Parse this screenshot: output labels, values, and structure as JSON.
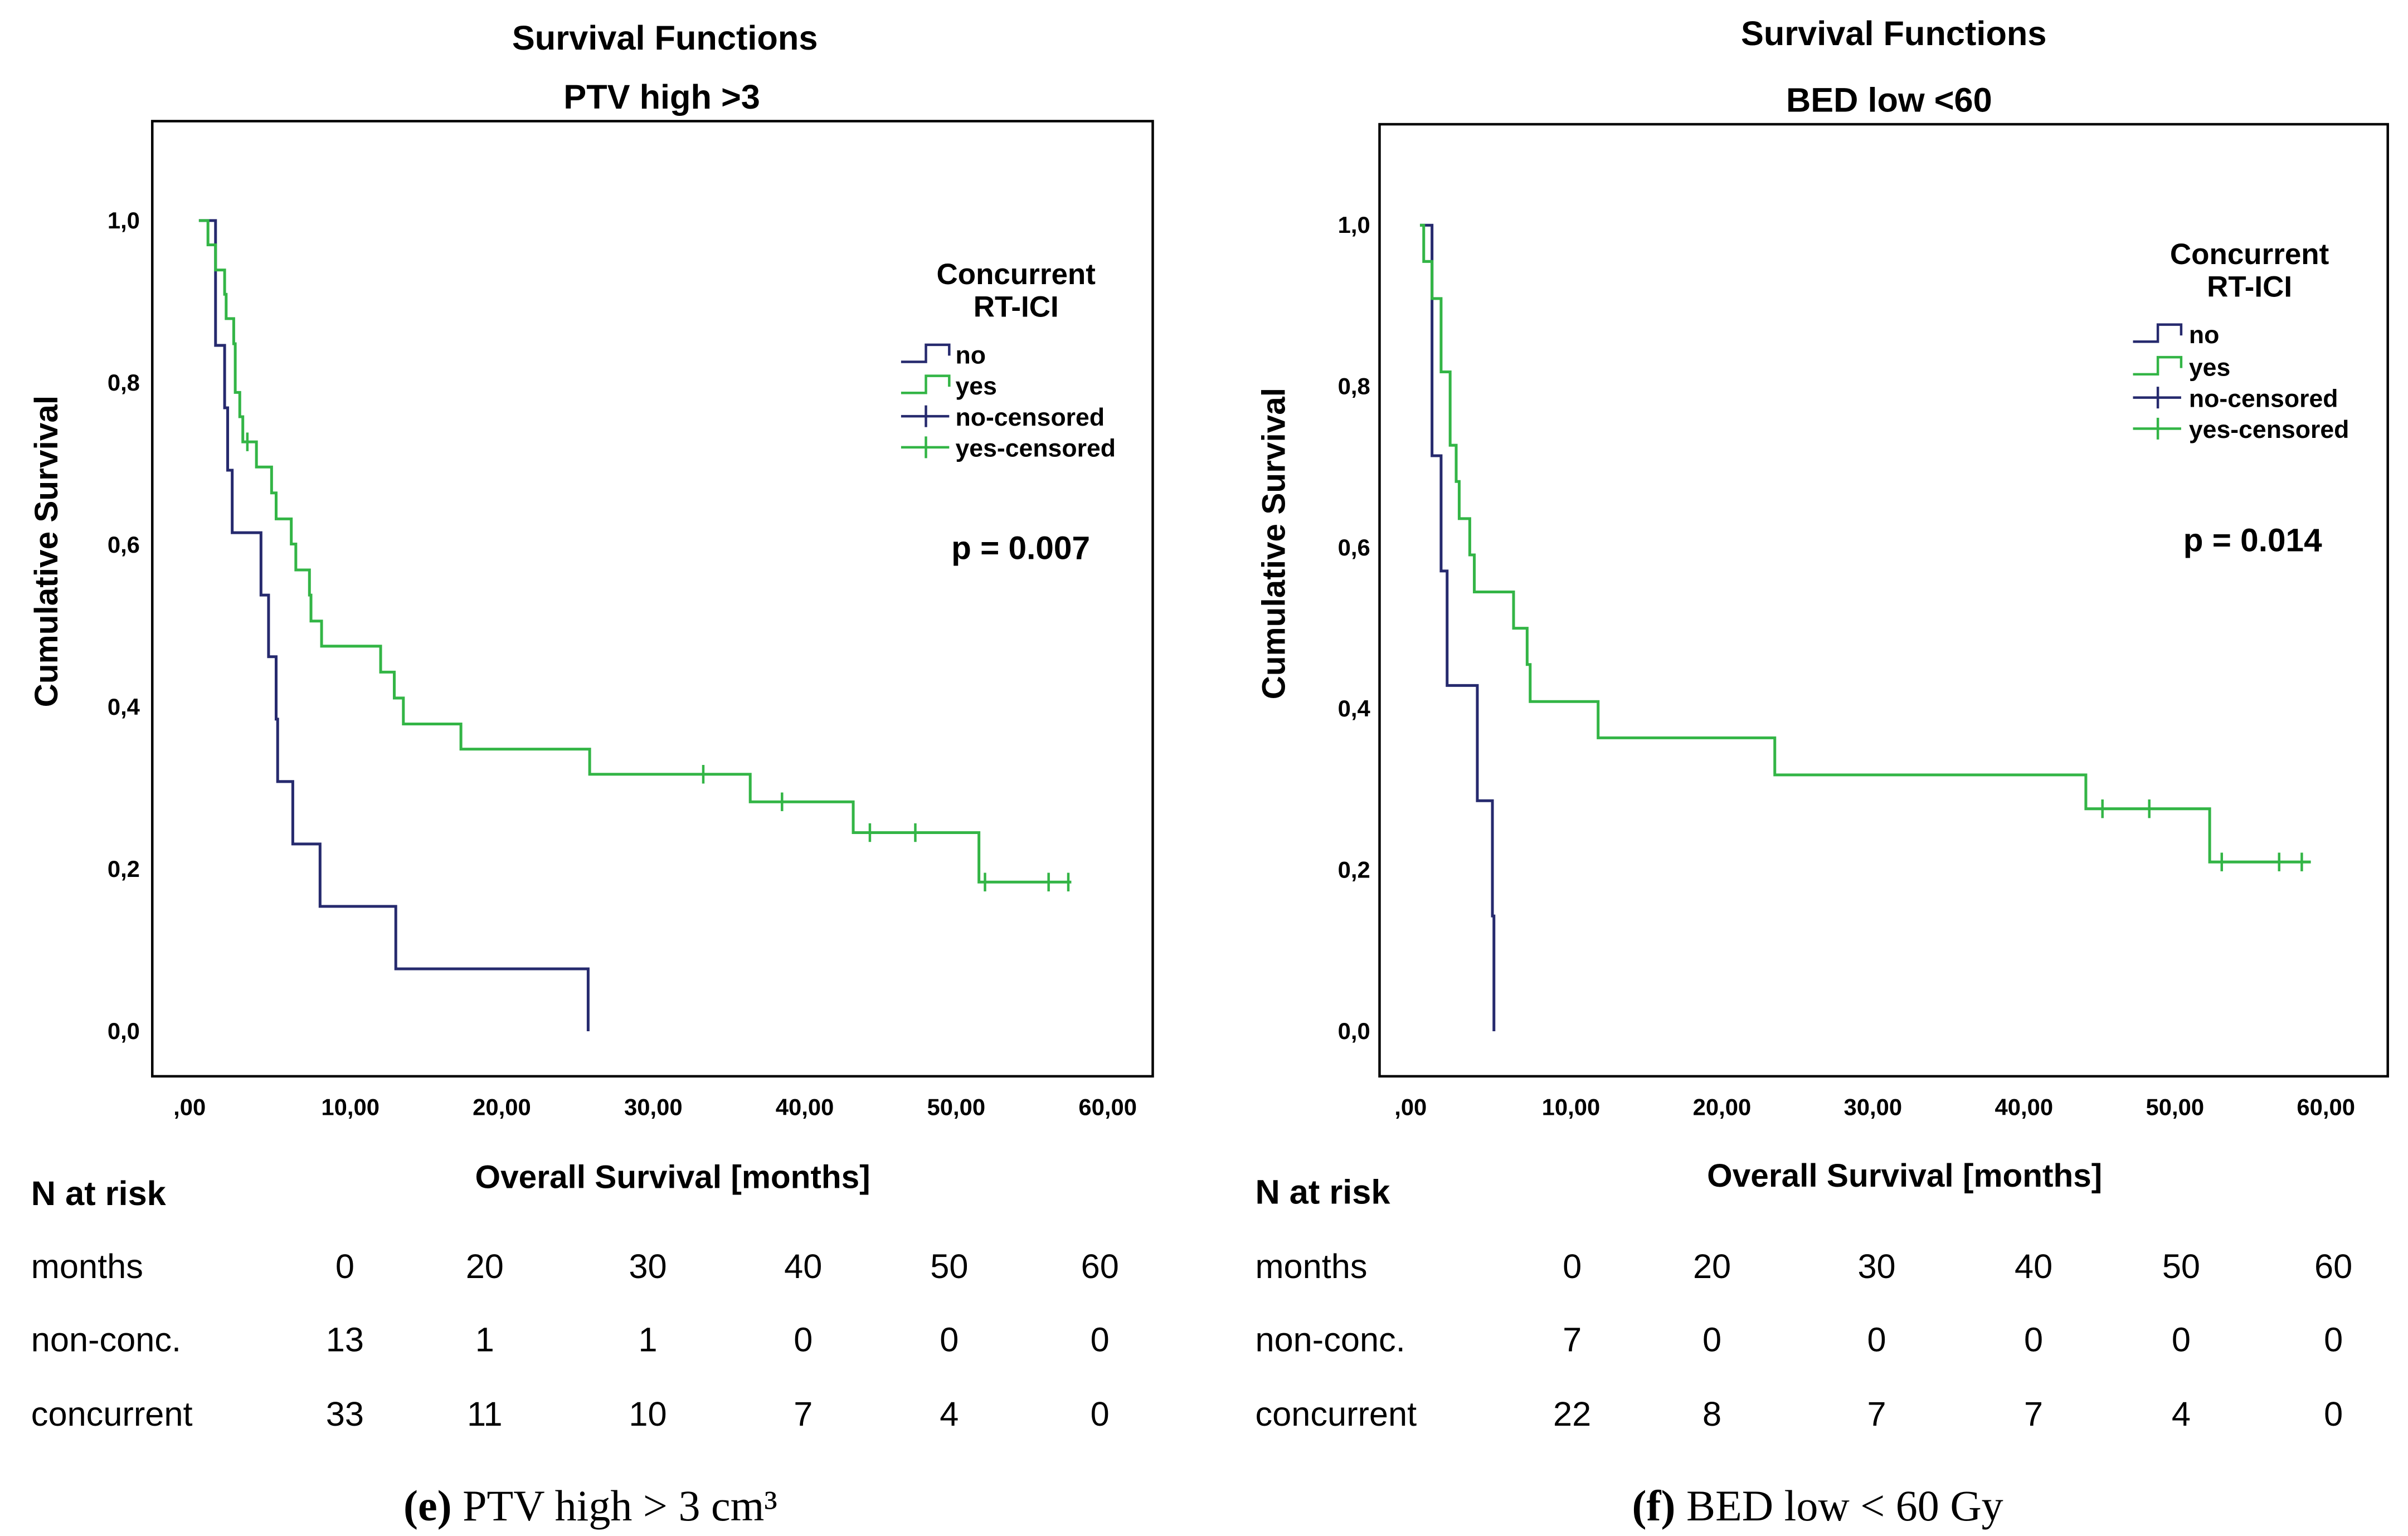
{
  "colors": {
    "no": "#262a6e",
    "yes": "#33b546"
  },
  "chart_data": [
    {
      "type": "line",
      "subtype": "kaplan-meier",
      "title": "Survival Functions",
      "subtitle": "PTV high >3",
      "xlabel": "Overall Survival [months]",
      "ylabel": "Cumulative Survival",
      "xlim": [
        0,
        60
      ],
      "ylim": [
        0,
        1
      ],
      "xticks": [
        ",00",
        "10,00",
        "20,00",
        "30,00",
        "40,00",
        "50,00",
        "60,00"
      ],
      "yticks": [
        "0,0",
        "0,2",
        "0,4",
        "0,6",
        "0,8",
        "1,0"
      ],
      "legend": {
        "title_line1": "Concurrent",
        "title_line2": "RT-ICI",
        "items": [
          "no",
          "yes",
          "no-censored",
          "yes-censored"
        ],
        "placement": "top-right"
      },
      "p_value": "p = 0.007",
      "series": [
        {
          "name": "no",
          "steps": [
            [
              0,
              1
            ],
            [
              1.1,
              0.846
            ],
            [
              1.7,
              0.769
            ],
            [
              1.9,
              0.692
            ],
            [
              2.2,
              0.615
            ],
            [
              4.1,
              0.538
            ],
            [
              4.6,
              0.462
            ],
            [
              5.1,
              0.385
            ],
            [
              5.2,
              0.308
            ],
            [
              6.2,
              0.231
            ],
            [
              8.0,
              0.154
            ],
            [
              13.0,
              0.077
            ],
            [
              25.7,
              0
            ]
          ],
          "end": 25.7,
          "censored": []
        },
        {
          "name": "yes",
          "steps": [
            [
              0,
              1
            ],
            [
              0.6,
              0.97
            ],
            [
              1.1,
              0.939
            ],
            [
              1.7,
              0.909
            ],
            [
              1.8,
              0.879
            ],
            [
              2.3,
              0.848
            ],
            [
              2.4,
              0.788
            ],
            [
              2.7,
              0.758
            ],
            [
              2.9,
              0.727
            ],
            [
              3.8,
              0.696
            ],
            [
              4.8,
              0.664
            ],
            [
              5.1,
              0.632
            ],
            [
              6.1,
              0.601
            ],
            [
              6.4,
              0.569
            ],
            [
              7.3,
              0.538
            ],
            [
              7.4,
              0.506
            ],
            [
              8.1,
              0.475
            ],
            [
              12.0,
              0.443
            ],
            [
              12.9,
              0.411
            ],
            [
              13.5,
              0.379
            ],
            [
              17.3,
              0.348
            ],
            [
              25.8,
              0.317
            ],
            [
              36.4,
              0.283
            ],
            [
              43.2,
              0.245
            ],
            [
              51.5,
              0.184
            ]
          ],
          "end": 57.6,
          "censored": [
            3.2,
            33.3,
            38.5,
            44.3,
            47.3,
            51.9,
            56.1,
            57.4
          ]
        }
      ],
      "at_risk": {
        "heading": "N at risk",
        "rows": [
          {
            "label": "months",
            "values": [
              "0",
              "20",
              "30",
              "40",
              "50",
              "60"
            ]
          },
          {
            "label": "non-conc.",
            "values": [
              "13",
              "1",
              "1",
              "0",
              "0",
              "0"
            ]
          },
          {
            "label": "concurrent",
            "values": [
              "33",
              "11",
              "10",
              "7",
              "4",
              "0"
            ]
          }
        ]
      },
      "caption_letter": "(e)",
      "caption_text": " PTV high > 3 cm³"
    },
    {
      "type": "line",
      "subtype": "kaplan-meier",
      "title": "Survival Functions",
      "subtitle": "BED low <60",
      "xlabel": "Overall Survival [months]",
      "ylabel": "Cumulative Survival",
      "xlim": [
        0,
        60
      ],
      "ylim": [
        0,
        1
      ],
      "xticks": [
        ",00",
        "10,00",
        "20,00",
        "30,00",
        "40,00",
        "50,00",
        "60,00"
      ],
      "yticks": [
        "0,0",
        "0,2",
        "0,4",
        "0,6",
        "0,8",
        "1,0"
      ],
      "legend": {
        "title_line1": "Concurrent",
        "title_line2": "RT-ICI",
        "items": [
          "no",
          "yes",
          "no-censored",
          "yes-censored"
        ],
        "placement": "top-right"
      },
      "p_value": "p = 0.014",
      "series": [
        {
          "name": "no",
          "steps": [
            [
              0,
              1
            ],
            [
              0.8,
              0.714
            ],
            [
              1.4,
              0.571
            ],
            [
              1.8,
              0.429
            ],
            [
              3.8,
              0.286
            ],
            [
              4.8,
              0.143
            ],
            [
              4.9,
              0
            ]
          ],
          "end": 4.9,
          "censored": []
        },
        {
          "name": "yes",
          "steps": [
            [
              0,
              1
            ],
            [
              0.25,
              0.955
            ],
            [
              0.8,
              0.909
            ],
            [
              1.4,
              0.818
            ],
            [
              2.0,
              0.727
            ],
            [
              2.4,
              0.682
            ],
            [
              2.6,
              0.636
            ],
            [
              3.3,
              0.591
            ],
            [
              3.6,
              0.545
            ],
            [
              6.2,
              0.5
            ],
            [
              7.1,
              0.455
            ],
            [
              7.3,
              0.409
            ],
            [
              11.8,
              0.364
            ],
            [
              23.5,
              0.318
            ],
            [
              44.1,
              0.276
            ],
            [
              52.3,
              0.21
            ]
          ],
          "end": 59,
          "censored": [
            45.2,
            48.3,
            53.1,
            56.9,
            58.4
          ]
        }
      ],
      "at_risk": {
        "heading": "N at risk",
        "rows": [
          {
            "label": "months",
            "values": [
              "0",
              "20",
              "30",
              "40",
              "50",
              "60"
            ]
          },
          {
            "label": "non-conc.",
            "values": [
              "7",
              "0",
              "0",
              "0",
              "0",
              "0"
            ]
          },
          {
            "label": "concurrent",
            "values": [
              "22",
              "8",
              "7",
              "7",
              "4",
              "0"
            ]
          }
        ]
      },
      "caption_letter": "(f)",
      "caption_text": " BED low < 60 Gy"
    }
  ]
}
